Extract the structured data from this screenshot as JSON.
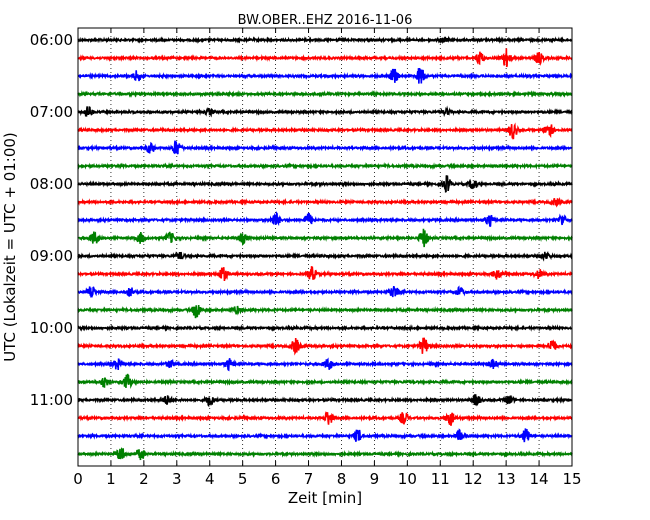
{
  "chart_data": {
    "type": "line",
    "title": "BW.OBER..EHZ 2016-11-06",
    "xlabel": "Zeit  [min]",
    "ylabel": "UTC (Lokalzeit = UTC + 01:00)",
    "xlim": [
      0,
      15
    ],
    "x_ticks": [
      0,
      1,
      2,
      3,
      4,
      5,
      6,
      7,
      8,
      9,
      10,
      11,
      12,
      13,
      14,
      15
    ],
    "y_tick_labels": [
      "06:00",
      "07:00",
      "08:00",
      "09:00",
      "10:00",
      "11:00"
    ],
    "grid": "vertical dotted",
    "colors": [
      "#000000",
      "#ff0000",
      "#0000ff",
      "#008000"
    ],
    "traces": [
      {
        "start": "06:00",
        "bursts": [
          [
            11.1,
            0.3
          ]
        ]
      },
      {
        "start": "06:15",
        "bursts": [
          [
            12.2,
            0.7
          ],
          [
            13.0,
            1.0
          ],
          [
            14.0,
            0.6
          ]
        ]
      },
      {
        "start": "06:30",
        "bursts": [
          [
            1.8,
            0.6
          ],
          [
            9.6,
            0.8
          ],
          [
            10.4,
            1.0
          ]
        ]
      },
      {
        "start": "06:45",
        "bursts": []
      },
      {
        "start": "07:00",
        "bursts": [
          [
            0.3,
            0.6
          ],
          [
            4.0,
            0.3
          ],
          [
            11.2,
            0.3
          ]
        ]
      },
      {
        "start": "07:15",
        "bursts": [
          [
            13.2,
            0.9
          ],
          [
            14.3,
            0.8
          ]
        ]
      },
      {
        "start": "07:30",
        "bursts": [
          [
            2.2,
            0.6
          ],
          [
            3.0,
            0.9
          ]
        ]
      },
      {
        "start": "07:45",
        "bursts": []
      },
      {
        "start": "08:00",
        "bursts": [
          [
            11.2,
            0.9
          ],
          [
            12.0,
            0.6
          ]
        ]
      },
      {
        "start": "08:15",
        "bursts": [
          [
            14.5,
            0.4
          ]
        ]
      },
      {
        "start": "08:30",
        "bursts": [
          [
            6.0,
            0.8
          ],
          [
            7.0,
            0.7
          ],
          [
            12.5,
            0.6
          ],
          [
            14.7,
            0.6
          ]
        ]
      },
      {
        "start": "08:45",
        "bursts": [
          [
            0.5,
            0.7
          ],
          [
            1.9,
            0.6
          ],
          [
            2.8,
            0.6
          ],
          [
            5.0,
            0.6
          ],
          [
            10.5,
            1.0
          ]
        ]
      },
      {
        "start": "09:00",
        "bursts": [
          [
            3.1,
            0.4
          ],
          [
            14.2,
            0.4
          ]
        ]
      },
      {
        "start": "09:15",
        "bursts": [
          [
            4.4,
            0.8
          ],
          [
            7.1,
            0.8
          ],
          [
            12.7,
            0.6
          ],
          [
            14.0,
            0.5
          ]
        ]
      },
      {
        "start": "09:30",
        "bursts": [
          [
            0.4,
            0.7
          ],
          [
            1.6,
            0.5
          ],
          [
            9.6,
            0.7
          ],
          [
            11.6,
            0.5
          ]
        ]
      },
      {
        "start": "09:45",
        "bursts": [
          [
            3.6,
            0.9
          ],
          [
            4.8,
            0.4
          ]
        ]
      },
      {
        "start": "10:00",
        "bursts": []
      },
      {
        "start": "10:15",
        "bursts": [
          [
            6.6,
            0.8
          ],
          [
            10.5,
            0.9
          ],
          [
            14.4,
            0.7
          ]
        ]
      },
      {
        "start": "10:30",
        "bursts": [
          [
            1.2,
            0.6
          ],
          [
            2.8,
            0.4
          ],
          [
            4.6,
            0.6
          ],
          [
            7.6,
            0.6
          ],
          [
            12.6,
            0.5
          ]
        ]
      },
      {
        "start": "10:45",
        "bursts": [
          [
            0.8,
            0.6
          ],
          [
            1.5,
            0.8
          ]
        ]
      },
      {
        "start": "11:00",
        "bursts": [
          [
            2.7,
            0.5
          ],
          [
            4.0,
            0.6
          ],
          [
            12.1,
            0.6
          ],
          [
            13.1,
            0.5
          ]
        ]
      },
      {
        "start": "11:15",
        "bursts": [
          [
            7.6,
            0.8
          ],
          [
            9.9,
            0.7
          ],
          [
            11.3,
            0.8
          ]
        ]
      },
      {
        "start": "11:30",
        "bursts": [
          [
            8.5,
            0.7
          ],
          [
            11.6,
            0.6
          ],
          [
            13.6,
            0.8
          ]
        ]
      },
      {
        "start": "11:45",
        "bursts": [
          [
            1.3,
            0.8
          ],
          [
            1.9,
            0.6
          ]
        ]
      }
    ]
  }
}
